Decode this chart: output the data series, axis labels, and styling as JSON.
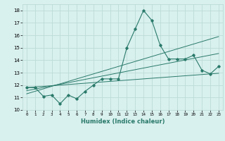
{
  "xlabel": "Humidex (Indice chaleur)",
  "x": [
    0,
    1,
    2,
    3,
    4,
    5,
    6,
    7,
    8,
    9,
    10,
    11,
    12,
    13,
    14,
    15,
    16,
    17,
    18,
    19,
    20,
    21,
    22,
    23
  ],
  "y_main": [
    11.8,
    11.8,
    11.1,
    11.2,
    10.5,
    11.2,
    10.9,
    11.5,
    12.0,
    12.5,
    12.5,
    12.5,
    15.0,
    16.5,
    18.0,
    17.2,
    15.2,
    14.1,
    14.1,
    14.1,
    14.4,
    13.2,
    12.9,
    13.5
  ],
  "y_line1": [
    11.8,
    11.85,
    11.9,
    11.95,
    12.0,
    12.05,
    12.1,
    12.15,
    12.2,
    12.25,
    12.3,
    12.35,
    12.4,
    12.45,
    12.5,
    12.55,
    12.6,
    12.65,
    12.7,
    12.75,
    12.8,
    12.85,
    12.9,
    12.95
  ],
  "y_line2": [
    11.55,
    11.68,
    11.81,
    11.94,
    12.07,
    12.2,
    12.33,
    12.46,
    12.59,
    12.72,
    12.85,
    12.98,
    13.11,
    13.24,
    13.37,
    13.5,
    13.63,
    13.76,
    13.89,
    14.02,
    14.15,
    14.28,
    14.41,
    14.54
  ],
  "y_line3": [
    11.3,
    11.5,
    11.7,
    11.9,
    12.1,
    12.3,
    12.5,
    12.7,
    12.9,
    13.1,
    13.3,
    13.5,
    13.7,
    13.9,
    14.1,
    14.3,
    14.5,
    14.7,
    14.9,
    15.1,
    15.3,
    15.5,
    15.7,
    15.9
  ],
  "line_color": "#2a7a6a",
  "bg_color": "#d8f0ee",
  "grid_color": "#b8d8d4",
  "ylim": [
    10,
    18.5
  ],
  "xlim": [
    -0.5,
    23.5
  ],
  "yticks": [
    10,
    11,
    12,
    13,
    14,
    15,
    16,
    17,
    18
  ],
  "xticks": [
    0,
    1,
    2,
    3,
    4,
    5,
    6,
    7,
    8,
    9,
    10,
    11,
    12,
    13,
    14,
    15,
    16,
    17,
    18,
    19,
    20,
    21,
    22,
    23
  ]
}
